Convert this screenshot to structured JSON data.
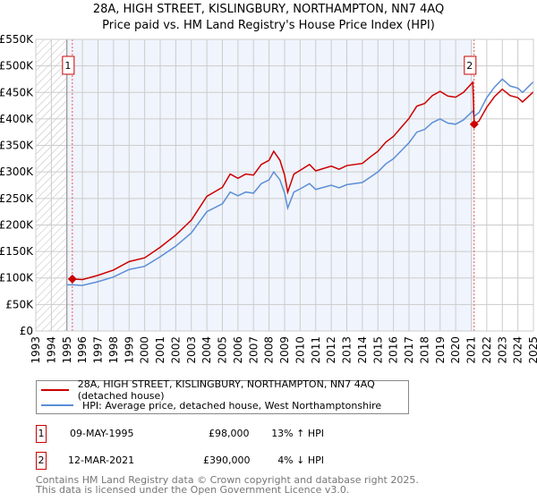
{
  "chart_data": {
    "type": "line",
    "title": "28A, HIGH STREET, KISLINGBURY, NORTHAMPTON, NN7 4AQ",
    "subtitle": "Price paid vs. HM Land Registry's House Price Index (HPI)",
    "xlim": [
      1993,
      2025
    ],
    "ylim": [
      0,
      550000
    ],
    "x_ticks": [
      "1993",
      "1994",
      "1995",
      "1996",
      "1997",
      "1998",
      "1999",
      "2000",
      "2001",
      "2002",
      "2003",
      "2004",
      "2005",
      "2006",
      "2007",
      "2008",
      "2009",
      "2010",
      "2011",
      "2012",
      "2013",
      "2014",
      "2015",
      "2016",
      "2017",
      "2018",
      "2019",
      "2020",
      "2021",
      "2022",
      "2023",
      "2024",
      "2025"
    ],
    "y_ticks": [
      {
        "v": 0,
        "l": "£0"
      },
      {
        "v": 50000,
        "l": "£50K"
      },
      {
        "v": 100000,
        "l": "£100K"
      },
      {
        "v": 150000,
        "l": "£150K"
      },
      {
        "v": 200000,
        "l": "£200K"
      },
      {
        "v": 250000,
        "l": "£250K"
      },
      {
        "v": 300000,
        "l": "£300K"
      },
      {
        "v": 350000,
        "l": "£350K"
      },
      {
        "v": 400000,
        "l": "£400K"
      },
      {
        "v": 450000,
        "l": "£450K"
      },
      {
        "v": 500000,
        "l": "£500K"
      },
      {
        "v": 550000,
        "l": "£550K"
      }
    ],
    "grid": true,
    "series": [
      {
        "name": "28A, HIGH STREET, KISLINGBURY, NORTHAMPTON, NN7 4AQ (detached house)",
        "color": "#cc0000",
        "x": [
          1995.35,
          1996,
          1997,
          1998,
          1999,
          2000,
          2001,
          2002,
          2003,
          2004,
          2005,
          2005.5,
          2006,
          2006.5,
          2007,
          2007.5,
          2008,
          2008.3,
          2008.7,
          2009,
          2009.2,
          2009.6,
          2010,
          2010.6,
          2011,
          2012,
          2012.5,
          2013,
          2014,
          2014.5,
          2015,
          2015.5,
          2016,
          2016.5,
          2017,
          2017.5,
          2018,
          2018.5,
          2019,
          2019.5,
          2020,
          2020.5,
          2021.1,
          2021.19,
          2021.5,
          2022,
          2022.5,
          2023,
          2023.5,
          2024,
          2024.3,
          2025
        ],
        "y": [
          98,
          97,
          105,
          115,
          131,
          138,
          158,
          181,
          209,
          254,
          271,
          296,
          288,
          296,
          294,
          314,
          322,
          339,
          322,
          294,
          262,
          296,
          303,
          314,
          302,
          311,
          305,
          312,
          316,
          328,
          339,
          356,
          367,
          384,
          401,
          424,
          429,
          444,
          452,
          443,
          441,
          450,
          469,
          390,
          396,
          422,
          442,
          456,
          444,
          440,
          432,
          451
        ]
      },
      {
        "name": "HPI: Average price, detached house, West Northamptonshire",
        "color": "#5b8fd6",
        "x": [
          1995,
          1995.35,
          1996,
          1997,
          1998,
          1999,
          2000,
          2001,
          2002,
          2003,
          2004,
          2005,
          2005.5,
          2006,
          2006.5,
          2007,
          2007.5,
          2008,
          2008.3,
          2008.7,
          2009,
          2009.2,
          2009.6,
          2010,
          2010.6,
          2011,
          2012,
          2012.5,
          2013,
          2014,
          2014.5,
          2015,
          2015.5,
          2016,
          2016.5,
          2017,
          2017.5,
          2018,
          2018.5,
          2019,
          2019.5,
          2020,
          2020.5,
          2021.1,
          2021.19,
          2021.5,
          2022,
          2022.5,
          2023,
          2023.5,
          2024,
          2024.3,
          2025
        ],
        "y": [
          87,
          87,
          86,
          93,
          102,
          116,
          122,
          140,
          160,
          185,
          225,
          240,
          262,
          255,
          262,
          260,
          278,
          285,
          300,
          285,
          260,
          232,
          262,
          268,
          278,
          267,
          275,
          270,
          276,
          280,
          290,
          300,
          315,
          325,
          340,
          355,
          375,
          380,
          393,
          400,
          392,
          390,
          398,
          415,
          405,
          412,
          440,
          460,
          475,
          462,
          458,
          450,
          470
        ]
      }
    ],
    "y_units": "thousands GBP",
    "sales": [
      {
        "n": "1",
        "x": 1995.35,
        "y": 98
      },
      {
        "n": "2",
        "x": 2021.19,
        "y": 390
      }
    ],
    "legend_placement": "bottom"
  },
  "table": [
    {
      "n": "1",
      "date": "09-MAY-1995",
      "price": "£98,000",
      "hpi": "13% ↑ HPI"
    },
    {
      "n": "2",
      "date": "12-MAR-2021",
      "price": "£390,000",
      "hpi": "4% ↓ HPI"
    }
  ],
  "footer": [
    "Contains HM Land Registry data © Crown copyright and database right 2025.",
    "This data is licensed under the Open Government Licence v3.0."
  ]
}
